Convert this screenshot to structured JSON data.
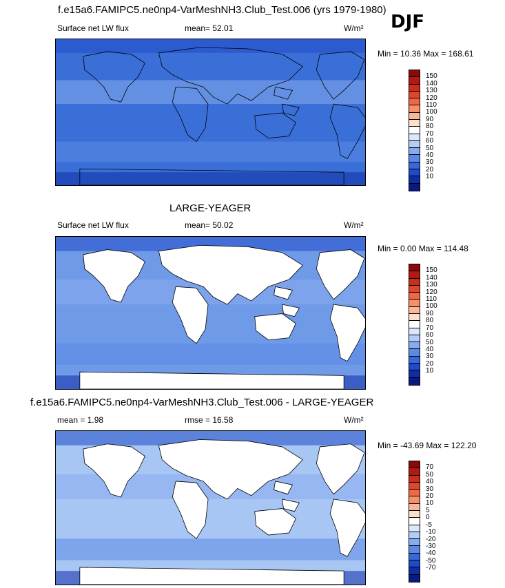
{
  "season": "DJF",
  "panels": [
    {
      "title": "f.e15a6.FAMIPC5.ne0np4-VarMeshNH3.Club_Test.006 (yrs 1979-1980)",
      "left_label": "Surface net LW flux",
      "center_label": "mean=  52.01",
      "units": "W/m²",
      "minmax": "Min =  10.36 Max = 168.61",
      "colorbar": {
        "labels": [
          "150",
          "140",
          "130",
          "120",
          "110",
          "100",
          "90",
          "80",
          "70",
          "60",
          "50",
          "40",
          "30",
          "20",
          "10"
        ],
        "colors": [
          "#8a0a0a",
          "#b01a12",
          "#cc2c1a",
          "#e0462a",
          "#ee6844",
          "#f5906a",
          "#fbb898",
          "#fde0cc",
          "#ffffff",
          "#dbe8fb",
          "#b4cdf6",
          "#86acee",
          "#5b8ae6",
          "#3868d9",
          "#1f4ac8",
          "#0e2ea6",
          "#0a1a80"
        ]
      },
      "base_color": "#3a6fd8"
    },
    {
      "title": "LARGE-YEAGER",
      "left_label": "Surface net LW flux",
      "center_label": "mean=  50.02",
      "units": "W/m²",
      "minmax": "Min =   0.00 Max = 114.48",
      "colorbar": {
        "labels": [
          "150",
          "140",
          "130",
          "120",
          "110",
          "100",
          "90",
          "80",
          "70",
          "60",
          "50",
          "40",
          "30",
          "20",
          "10"
        ],
        "colors": [
          "#8a0a0a",
          "#b01a12",
          "#cc2c1a",
          "#e0462a",
          "#ee6844",
          "#f5906a",
          "#fbb898",
          "#fde0cc",
          "#ffffff",
          "#dbe8fb",
          "#b4cdf6",
          "#86acee",
          "#5b8ae6",
          "#3868d9",
          "#1f4ac8",
          "#0e2ea6",
          "#0a1a80"
        ]
      },
      "base_color": "#6f9ae8"
    },
    {
      "title": "f.e15a6.FAMIPC5.ne0np4-VarMeshNH3.Club_Test.006 - LARGE-YEAGER",
      "left_label": "mean =   1.98",
      "center_label": "rmse =  16.58",
      "units": "W/m²",
      "minmax": "Min = -43.69 Max = 122.20",
      "colorbar": {
        "labels": [
          "70",
          "50",
          "40",
          "30",
          "20",
          "10",
          "5",
          "0",
          "-5",
          "-10",
          "-20",
          "-30",
          "-40",
          "-50",
          "-70"
        ],
        "colors": [
          "#8a0a0a",
          "#b01a12",
          "#cc2c1a",
          "#e0462a",
          "#ee6844",
          "#f5906a",
          "#fbb898",
          "#fde0cc",
          "#ffffff",
          "#dbe8fb",
          "#b4cdf6",
          "#86acee",
          "#5b8ae6",
          "#3868d9",
          "#1f4ac8",
          "#0e2ea6",
          "#0a1a80"
        ]
      },
      "base_color": "#a8c6f4"
    }
  ]
}
